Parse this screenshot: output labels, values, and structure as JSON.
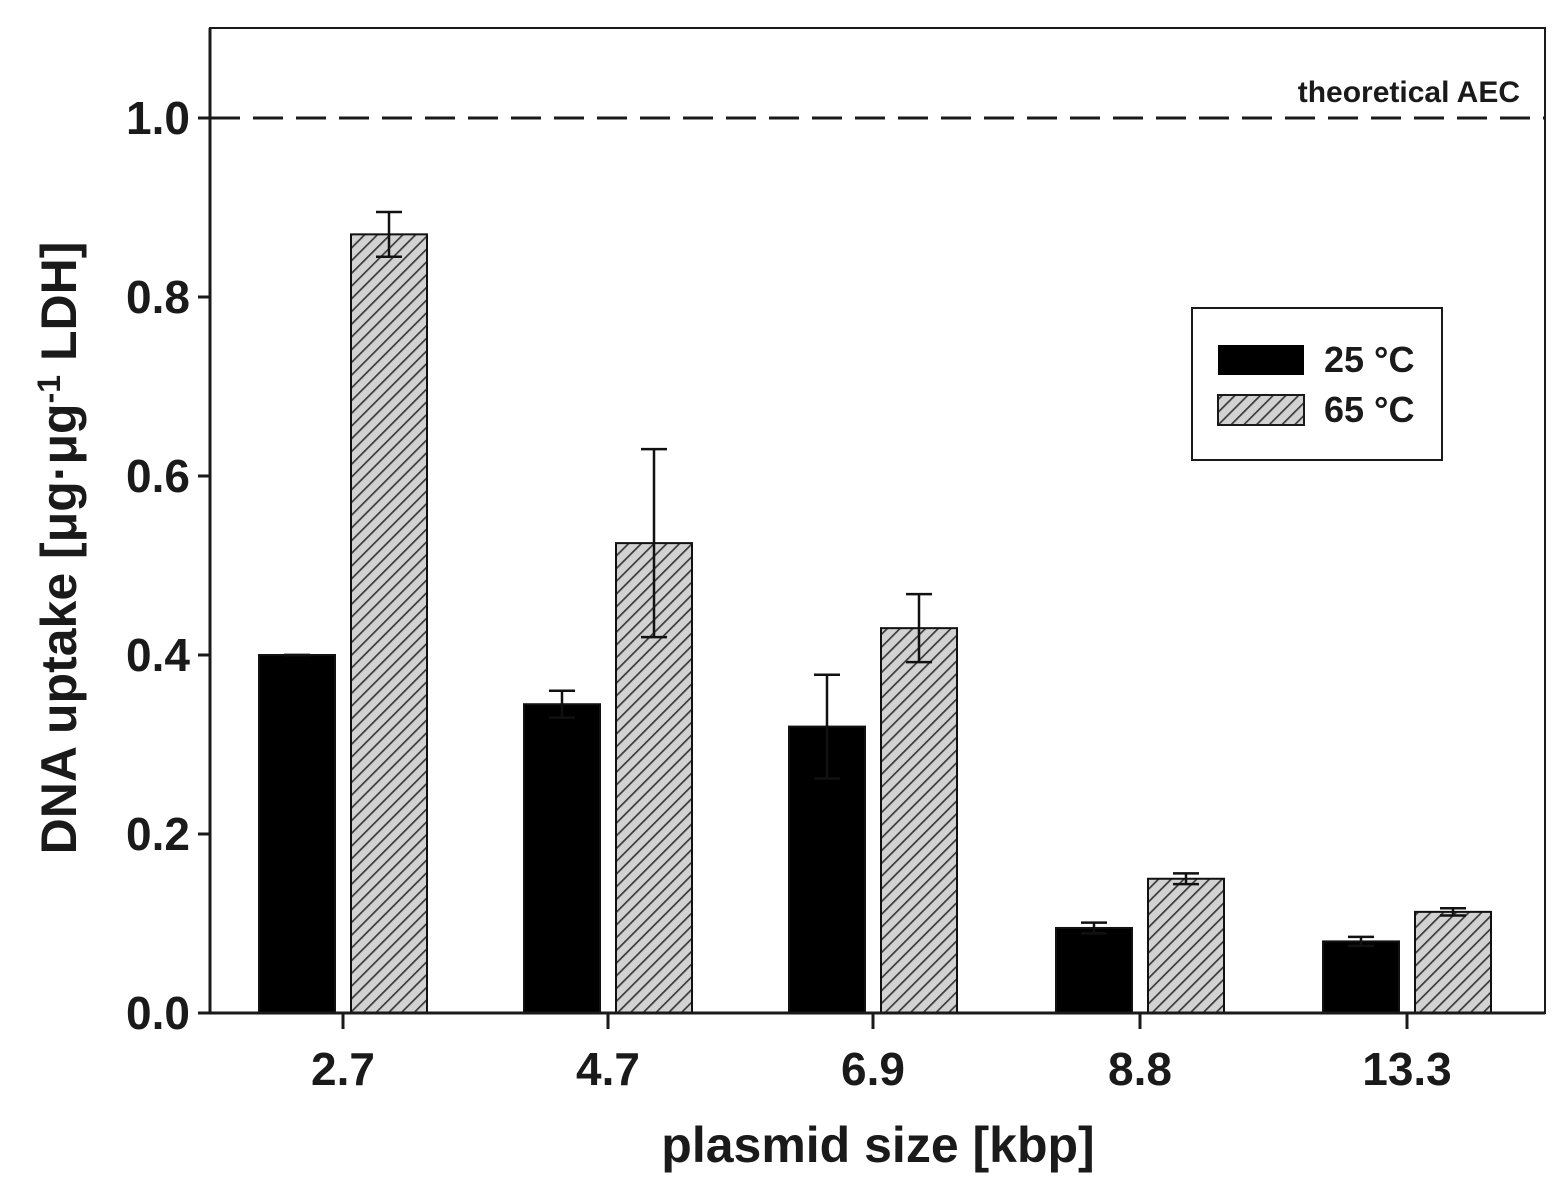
{
  "chart_data": {
    "type": "bar",
    "title": "",
    "xlabel": "plasmid size [kbp]",
    "ylabel": {
      "prefix": "DNA uptake [μg·μg",
      "superscript": "-1",
      "suffix": " LDH]"
    },
    "categories": [
      "2.7",
      "4.7",
      "6.9",
      "8.8",
      "13.3"
    ],
    "ylim": [
      0,
      1.1
    ],
    "yticks": [
      "0.0",
      "0.2",
      "0.4",
      "0.6",
      "0.8",
      "1.0"
    ],
    "series": [
      {
        "name": "25 °C",
        "fill": "solid",
        "color": "#000000",
        "values": [
          0.4,
          0.345,
          0.32,
          0.095,
          0.08
        ],
        "errors": [
          0.0,
          0.015,
          0.058,
          0.006,
          0.005
        ]
      },
      {
        "name": "65 °C",
        "fill": "hatched",
        "color": "#b8b8b8",
        "values": [
          0.87,
          0.525,
          0.43,
          0.15,
          0.113
        ],
        "errors": [
          0.025,
          0.105,
          0.038,
          0.006,
          0.004
        ]
      }
    ],
    "reference_line": {
      "y": 1.0,
      "label": "theoretical AEC",
      "style": "dashed"
    },
    "legend": {
      "position": "right-middle"
    },
    "grid": false
  }
}
